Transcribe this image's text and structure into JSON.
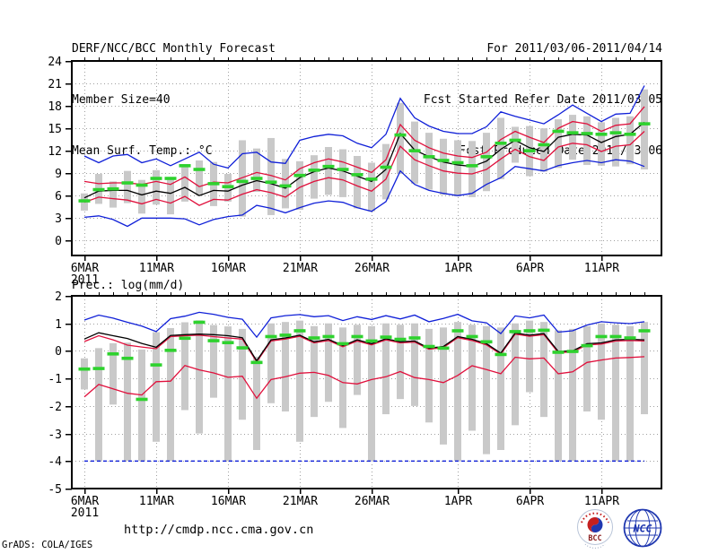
{
  "header": {
    "left": [
      "DERF/NCC/BCC Monthly Forecast",
      "Member Size=40"
    ],
    "right": [
      "For 2011/03/06-2011/04/14",
      "Fcst Started Refer Date 2011/03/05",
      "Fcst Produced Date 2011/03/06"
    ]
  },
  "footer": {
    "url": "http://cmdp.ncc.cma.gov.cn",
    "credit": "GrADS: COLA/IGES",
    "logos": {
      "bcc_label": "BCC",
      "ncc_label": "NCC"
    }
  },
  "colors": {
    "blue": "#1020d8",
    "red": "#e0103c",
    "green": "#2ed22e",
    "black": "#000000",
    "bar": "#c9c9c9",
    "grid": "#a0a0a0",
    "logo_red": "#c42020",
    "logo_blue": "#2038b0",
    "logo_darkred": "#8b2020"
  },
  "chart_data": [
    {
      "type": "line",
      "title": "Mean Surf. Temp.: °C",
      "days": 40,
      "ylim": [
        -2,
        24
      ],
      "yticks": [
        0,
        3,
        6,
        9,
        12,
        15,
        18,
        21,
        24
      ],
      "xticks": [
        {
          "day": 1,
          "label": "6MAR",
          "sub": "2011"
        },
        {
          "day": 6,
          "label": "11MAR"
        },
        {
          "day": 11,
          "label": "16MAR"
        },
        {
          "day": 16,
          "label": "21MAR"
        },
        {
          "day": 21,
          "label": "26MAR"
        },
        {
          "day": 27,
          "label": "1APR"
        },
        {
          "day": 32,
          "label": "6APR"
        },
        {
          "day": 37,
          "label": "11APR"
        }
      ],
      "series": [
        {
          "name": "ensemble-max",
          "color": "blue",
          "values": [
            11.3,
            10.4,
            11.3,
            11.5,
            10.4,
            10.9,
            10.0,
            10.9,
            11.8,
            10.2,
            9.7,
            11.6,
            11.8,
            10.5,
            10.3,
            13.4,
            13.9,
            14.2,
            14.0,
            13.0,
            12.4,
            14.2,
            19.0,
            16.4,
            15.3,
            14.6,
            14.3,
            14.3,
            15.2,
            17.2,
            16.6,
            16.1,
            15.6,
            16.8,
            18.1,
            17.0,
            15.9,
            16.9,
            17.0,
            20.7
          ]
        },
        {
          "name": "ensemble-min",
          "color": "blue",
          "values": [
            3.1,
            3.3,
            2.8,
            1.9,
            3.0,
            3.0,
            3.0,
            2.9,
            2.1,
            2.8,
            3.2,
            3.4,
            4.7,
            4.3,
            3.7,
            4.4,
            5.0,
            5.3,
            5.1,
            4.4,
            3.9,
            5.2,
            9.3,
            7.5,
            6.7,
            6.3,
            6.0,
            6.3,
            7.5,
            8.4,
            9.9,
            9.6,
            9.3,
            10.0,
            10.4,
            10.7,
            10.4,
            10.8,
            10.6,
            9.9
          ]
        },
        {
          "name": "upper-bound",
          "color": "red",
          "values": [
            7.9,
            7.6,
            7.7,
            7.7,
            7.5,
            7.9,
            7.5,
            8.5,
            7.2,
            7.8,
            7.7,
            8.4,
            9.1,
            8.7,
            8.1,
            9.6,
            10.4,
            10.9,
            10.5,
            9.8,
            9.1,
            10.8,
            15.5,
            13.4,
            12.4,
            11.7,
            11.3,
            11.1,
            11.8,
            13.5,
            14.6,
            13.8,
            13.1,
            15.0,
            15.9,
            15.6,
            14.6,
            15.4,
            15.6,
            17.9
          ]
        },
        {
          "name": "lower-bound",
          "color": "red",
          "values": [
            5.1,
            5.8,
            5.6,
            5.4,
            4.9,
            5.5,
            5.0,
            5.9,
            4.7,
            5.5,
            5.4,
            6.2,
            6.8,
            6.4,
            5.8,
            7.1,
            7.9,
            8.4,
            8.1,
            7.3,
            6.6,
            8.2,
            12.6,
            10.8,
            10.0,
            9.3,
            9.0,
            8.9,
            9.5,
            10.9,
            12.2,
            11.2,
            10.7,
            12.5,
            13.0,
            12.8,
            11.9,
            12.6,
            12.8,
            14.6
          ]
        },
        {
          "name": "ensemble-mean",
          "color": "black",
          "values": [
            5.7,
            6.6,
            6.7,
            6.7,
            6.1,
            6.6,
            6.3,
            7.1,
            6.0,
            6.7,
            6.6,
            7.4,
            8.0,
            7.6,
            7.0,
            8.4,
            9.2,
            9.7,
            9.3,
            8.6,
            7.9,
            9.5,
            14.3,
            12.1,
            11.2,
            10.5,
            10.1,
            9.9,
            10.6,
            12.2,
            13.4,
            12.4,
            11.9,
            13.8,
            14.2,
            14.1,
            13.1,
            13.9,
            14.2,
            15.8
          ]
        },
        {
          "name": "observation",
          "color": "green",
          "style": "marks",
          "values": [
            5.3,
            6.8,
            6.9,
            7.7,
            7.4,
            8.3,
            8.3,
            10.0,
            9.5,
            7.6,
            7.2,
            7.9,
            8.3,
            7.8,
            7.3,
            8.7,
            9.4,
            9.9,
            9.5,
            8.8,
            8.2,
            9.8,
            14.1,
            12.0,
            11.2,
            10.7,
            10.4,
            10.0,
            11.2,
            13.0,
            13.4,
            12.0,
            12.8,
            14.6,
            14.4,
            14.3,
            14.2,
            14.4,
            14.2,
            15.6
          ]
        }
      ],
      "bars": {
        "name": "ensemble-spread",
        "color": "bar",
        "ranges": [
          [
            4.0,
            6.3
          ],
          [
            4.9,
            8.9
          ],
          [
            4.4,
            7.9
          ],
          [
            5.0,
            9.3
          ],
          [
            3.6,
            8.1
          ],
          [
            4.8,
            9.4
          ],
          [
            3.5,
            8.3
          ],
          [
            5.2,
            10.2
          ],
          [
            6.0,
            10.7
          ],
          [
            4.6,
            10.5
          ],
          [
            5.2,
            8.9
          ],
          [
            3.2,
            13.4
          ],
          [
            6.5,
            12.3
          ],
          [
            3.4,
            13.7
          ],
          [
            4.3,
            10.9
          ],
          [
            4.1,
            10.6
          ],
          [
            5.6,
            11.4
          ],
          [
            6.1,
            12.5
          ],
          [
            5.8,
            12.2
          ],
          [
            4.3,
            11.3
          ],
          [
            3.9,
            10.4
          ],
          [
            5.5,
            12.9
          ],
          [
            8.9,
            18.4
          ],
          [
            7.6,
            15.9
          ],
          [
            6.8,
            14.4
          ],
          [
            6.1,
            13.6
          ],
          [
            5.9,
            13.4
          ],
          [
            5.8,
            13.3
          ],
          [
            6.6,
            14.4
          ],
          [
            8.2,
            16.4
          ],
          [
            10.4,
            15.2
          ],
          [
            8.6,
            15.3
          ],
          [
            9.2,
            15.0
          ],
          [
            9.7,
            16.2
          ],
          [
            10.8,
            16.8
          ],
          [
            10.1,
            16.6
          ],
          [
            10.0,
            15.8
          ],
          [
            9.9,
            16.4
          ],
          [
            10.2,
            16.6
          ],
          [
            9.5,
            20.2
          ]
        ]
      }
    },
    {
      "type": "line",
      "title": "Prec.: log(mm/d)",
      "days": 40,
      "ylim": [
        -5,
        2
      ],
      "yticks": [
        -5,
        -4,
        -3,
        -2,
        -1,
        0,
        1,
        2
      ],
      "xticks": [
        {
          "day": 1,
          "label": "6MAR",
          "sub": "2011"
        },
        {
          "day": 6,
          "label": "11MAR"
        },
        {
          "day": 11,
          "label": "16MAR"
        },
        {
          "day": 16,
          "label": "21MAR"
        },
        {
          "day": 21,
          "label": "26MAR"
        },
        {
          "day": 27,
          "label": "1APR"
        },
        {
          "day": 32,
          "label": "6APR"
        },
        {
          "day": 37,
          "label": "11APR"
        }
      ],
      "series": [
        {
          "name": "ensemble-max",
          "color": "blue",
          "values": [
            1.12,
            1.3,
            1.19,
            1.04,
            0.9,
            0.7,
            1.17,
            1.26,
            1.4,
            1.33,
            1.22,
            1.15,
            0.5,
            1.2,
            1.28,
            1.32,
            1.24,
            1.28,
            1.1,
            1.24,
            1.14,
            1.28,
            1.16,
            1.3,
            1.06,
            1.18,
            1.33,
            1.09,
            1.02,
            0.63,
            1.27,
            1.2,
            1.3,
            0.68,
            0.73,
            0.94,
            1.06,
            1.02,
            0.99,
            1.06
          ]
        },
        {
          "name": "ensemble-min",
          "color": "blue",
          "dashed": true,
          "flat": -4.0
        },
        {
          "name": "upper-bound",
          "color": "red",
          "values": [
            0.34,
            0.55,
            0.4,
            0.21,
            0.14,
            0.08,
            0.52,
            0.55,
            0.57,
            0.52,
            0.47,
            0.43,
            -0.4,
            0.36,
            0.43,
            0.53,
            0.29,
            0.38,
            0.15,
            0.36,
            0.22,
            0.4,
            0.29,
            0.32,
            0.06,
            0.12,
            0.48,
            0.38,
            0.22,
            -0.12,
            0.61,
            0.53,
            0.59,
            -0.06,
            -0.04,
            0.22,
            0.25,
            0.36,
            0.38,
            0.36
          ]
        },
        {
          "name": "lower-bound",
          "color": "red",
          "values": [
            -1.67,
            -1.22,
            -1.38,
            -1.54,
            -1.6,
            -1.12,
            -1.1,
            -0.53,
            -0.69,
            -0.8,
            -0.96,
            -0.92,
            -1.72,
            -1.04,
            -0.94,
            -0.81,
            -0.78,
            -0.89,
            -1.15,
            -1.2,
            -1.04,
            -0.94,
            -0.75,
            -0.97,
            -1.04,
            -1.15,
            -0.89,
            -0.54,
            -0.68,
            -0.83,
            -0.23,
            -0.29,
            -0.26,
            -0.83,
            -0.76,
            -0.42,
            -0.33,
            -0.26,
            -0.24,
            -0.21
          ]
        },
        {
          "name": "ensemble-mean",
          "color": "black",
          "values": [
            0.43,
            0.66,
            0.55,
            0.45,
            0.27,
            0.13,
            0.56,
            0.59,
            0.61,
            0.59,
            0.55,
            0.48,
            -0.36,
            0.4,
            0.47,
            0.57,
            0.33,
            0.42,
            0.19,
            0.4,
            0.26,
            0.44,
            0.33,
            0.36,
            0.1,
            0.16,
            0.52,
            0.42,
            0.26,
            -0.08,
            0.65,
            0.57,
            0.63,
            -0.02,
            0.0,
            0.26,
            0.29,
            0.4,
            0.42,
            0.4
          ]
        },
        {
          "name": "observation",
          "color": "green",
          "style": "marks",
          "values": [
            -0.66,
            -0.64,
            -0.11,
            -0.27,
            -1.76,
            -0.51,
            0.02,
            0.46,
            1.04,
            0.37,
            0.3,
            0.11,
            -0.42,
            0.52,
            0.57,
            0.73,
            0.47,
            0.52,
            0.26,
            0.52,
            0.36,
            0.5,
            0.42,
            0.47,
            0.16,
            0.1,
            0.73,
            0.52,
            0.33,
            -0.13,
            0.7,
            0.73,
            0.75,
            -0.05,
            -0.02,
            0.19,
            0.52,
            0.52,
            0.47,
            0.73
          ]
        }
      ],
      "bars": {
        "name": "ensemble-spread",
        "color": "bar",
        "ranges": [
          [
            -1.4,
            -0.27
          ],
          [
            -4.0,
            0.1
          ],
          [
            -1.95,
            0.28
          ],
          [
            -4.0,
            0.3
          ],
          [
            -4.0,
            0.05
          ],
          [
            -3.3,
            0.68
          ],
          [
            -4.0,
            0.83
          ],
          [
            -2.15,
            1.04
          ],
          [
            -3.0,
            1.11
          ],
          [
            -1.7,
            0.94
          ],
          [
            -4.0,
            0.89
          ],
          [
            -2.5,
            0.8
          ],
          [
            -3.6,
            -0.21
          ],
          [
            -1.9,
            1.0
          ],
          [
            -2.2,
            1.05
          ],
          [
            -3.3,
            1.1
          ],
          [
            -2.4,
            0.9
          ],
          [
            -1.85,
            1.0
          ],
          [
            -2.8,
            0.85
          ],
          [
            -1.6,
            0.95
          ],
          [
            -4.0,
            0.9
          ],
          [
            -2.3,
            1.0
          ],
          [
            -1.75,
            0.95
          ],
          [
            -2.0,
            1.0
          ],
          [
            -2.6,
            0.8
          ],
          [
            -3.4,
            0.85
          ],
          [
            -4.0,
            1.05
          ],
          [
            -2.9,
            0.95
          ],
          [
            -3.75,
            0.9
          ],
          [
            -3.6,
            0.85
          ],
          [
            -2.7,
            1.0
          ],
          [
            -1.5,
            1.1
          ],
          [
            -2.4,
            1.05
          ],
          [
            -4.0,
            0.75
          ],
          [
            -4.0,
            0.8
          ],
          [
            -2.2,
            0.9
          ],
          [
            -2.5,
            1.0
          ],
          [
            -4.0,
            0.95
          ],
          [
            -4.0,
            0.9
          ],
          [
            -2.3,
            1.05
          ]
        ]
      }
    }
  ]
}
